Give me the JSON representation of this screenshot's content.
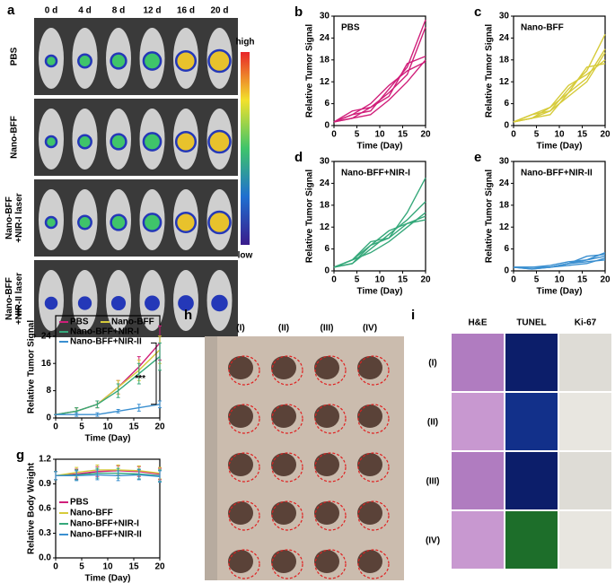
{
  "panel_a": {
    "label": "a",
    "columns": [
      "0 d",
      "4 d",
      "8 d",
      "12 d",
      "16 d",
      "20 d"
    ],
    "rows": [
      [
        "PBS"
      ],
      [
        "Nano-BFF"
      ],
      [
        "Nano-BFF",
        "+NIR-I laser"
      ],
      [
        "Nano-BFF",
        "+NIR-II laser"
      ]
    ],
    "scale_high": "high",
    "scale_low": "low"
  },
  "panel_h": {
    "label": "h",
    "columns": [
      "(I)",
      "(II)",
      "(III)",
      "(IV)"
    ]
  },
  "panel_i": {
    "label": "i",
    "columns": [
      "H&E",
      "TUNEL",
      "Ki-67"
    ],
    "rows": [
      "(I)",
      "(II)",
      "(III)",
      "(IV)"
    ]
  },
  "chart_data": [
    {
      "type": "line",
      "panel": "b",
      "title": "PBS",
      "xlabel": "Time (Day)",
      "ylabel": "Relative Tumor Signal",
      "x": [
        0,
        4,
        8,
        12,
        16,
        20
      ],
      "xlim": [
        0,
        20
      ],
      "xticks": [
        0,
        5,
        10,
        15,
        20
      ],
      "ylim": [
        0,
        30
      ],
      "yticks": [
        0,
        6,
        12,
        18,
        24,
        30
      ],
      "series": [
        {
          "color": "#d01f7a",
          "values": [
            1,
            3,
            4,
            10,
            16,
            29
          ]
        },
        {
          "color": "#d01f7a",
          "values": [
            1,
            2,
            5,
            9,
            14,
            27
          ]
        },
        {
          "color": "#d01f7a",
          "values": [
            1,
            4,
            5,
            8,
            17,
            19
          ]
        },
        {
          "color": "#d01f7a",
          "values": [
            1,
            2,
            3,
            7,
            12,
            18
          ]
        },
        {
          "color": "#d01f7a",
          "values": [
            1,
            3,
            6,
            11,
            15,
            17.5
          ]
        }
      ]
    },
    {
      "type": "line",
      "panel": "c",
      "title": "Nano-BFF",
      "xlabel": "Time (Day)",
      "ylabel": "Relative Tumor Signal",
      "x": [
        0,
        4,
        8,
        12,
        16,
        20
      ],
      "xlim": [
        0,
        20
      ],
      "xticks": [
        0,
        5,
        10,
        15,
        20
      ],
      "ylim": [
        0,
        30
      ],
      "yticks": [
        0,
        6,
        12,
        18,
        24,
        30
      ],
      "series": [
        {
          "color": "#d6cb3a",
          "values": [
            1,
            2,
            4,
            10,
            15,
            25
          ]
        },
        {
          "color": "#d6cb3a",
          "values": [
            1,
            3,
            5,
            9,
            13,
            21
          ]
        },
        {
          "color": "#d6cb3a",
          "values": [
            1,
            2,
            3,
            9,
            16,
            17
          ]
        },
        {
          "color": "#d6cb3a",
          "values": [
            1,
            3,
            4,
            8,
            12,
            20
          ]
        },
        {
          "color": "#d6cb3a",
          "values": [
            1,
            2,
            5,
            11,
            14,
            18
          ]
        }
      ]
    },
    {
      "type": "line",
      "panel": "d",
      "title": "Nano-BFF+NIR-I",
      "xlabel": "Time (Day)",
      "ylabel": "Relative Tumor Signal",
      "x": [
        0,
        4,
        8,
        12,
        16,
        20
      ],
      "xlim": [
        0,
        20
      ],
      "xticks": [
        0,
        5,
        10,
        15,
        20
      ],
      "ylim": [
        0,
        30
      ],
      "yticks": [
        0,
        6,
        12,
        18,
        24,
        30
      ],
      "series": [
        {
          "color": "#35a87a",
          "values": [
            1,
            3,
            7,
            9,
            16,
            25.5
          ]
        },
        {
          "color": "#35a87a",
          "values": [
            1,
            2,
            6,
            10,
            14,
            19
          ]
        },
        {
          "color": "#35a87a",
          "values": [
            1,
            3,
            5,
            8,
            12,
            16
          ]
        },
        {
          "color": "#35a87a",
          "values": [
            1,
            2,
            7,
            11,
            13,
            15
          ]
        },
        {
          "color": "#35a87a",
          "values": [
            1,
            3,
            8,
            9,
            13,
            14
          ]
        }
      ]
    },
    {
      "type": "line",
      "panel": "e",
      "title": "Nano-BFF+NIR-II",
      "xlabel": "Time (Day)",
      "ylabel": "Relative Tumor Signal",
      "x": [
        0,
        4,
        8,
        12,
        16,
        20
      ],
      "xlim": [
        0,
        20
      ],
      "xticks": [
        0,
        5,
        10,
        15,
        20
      ],
      "ylim": [
        0,
        30
      ],
      "yticks": [
        0,
        6,
        12,
        18,
        24,
        30
      ],
      "series": [
        {
          "color": "#3a8fd0",
          "values": [
            1,
            1,
            1,
            2,
            3,
            5
          ]
        },
        {
          "color": "#3a8fd0",
          "values": [
            1,
            0.5,
            1,
            2,
            4,
            4.5
          ]
        },
        {
          "color": "#3a8fd0",
          "values": [
            1,
            1,
            1.5,
            2.5,
            3,
            4
          ]
        },
        {
          "color": "#3a8fd0",
          "values": [
            1,
            0.5,
            1,
            1.5,
            2,
            3.5
          ]
        },
        {
          "color": "#3a8fd0",
          "values": [
            1,
            1,
            1,
            2,
            2.5,
            3
          ]
        }
      ]
    },
    {
      "type": "errorline",
      "panel": "f",
      "xlabel": "Time (Day)",
      "ylabel": "Relative Tumor Signal",
      "annotation": "***",
      "x": [
        0,
        4,
        8,
        12,
        16,
        20
      ],
      "xlim": [
        0,
        20
      ],
      "xticks": [
        0,
        5,
        10,
        15,
        20
      ],
      "ylim": [
        0,
        30
      ],
      "yticks": [
        0,
        8,
        16,
        24
      ],
      "series": [
        {
          "name": "PBS",
          "color": "#d01f7a",
          "values": [
            1,
            2,
            4,
            9,
            15,
            22
          ],
          "errors": [
            0,
            1,
            1,
            2,
            3,
            5
          ]
        },
        {
          "name": "Nano-BFF",
          "color": "#d6cb3a",
          "values": [
            1,
            2,
            4,
            9,
            14,
            20
          ],
          "errors": [
            0,
            1,
            1,
            2,
            3,
            4
          ]
        },
        {
          "name": "Nano-BFF+NIR-I",
          "color": "#35a87a",
          "values": [
            1,
            2,
            4,
            8,
            13,
            18
          ],
          "errors": [
            0,
            1,
            1,
            2,
            3,
            4
          ]
        },
        {
          "name": "Nano-BFF+NIR-II",
          "color": "#3a8fd0",
          "values": [
            1,
            1,
            1,
            2,
            3,
            4
          ],
          "errors": [
            0,
            0.5,
            0.5,
            0.5,
            1,
            1
          ]
        }
      ]
    },
    {
      "type": "errorline",
      "panel": "g",
      "xlabel": "Time (Day)",
      "ylabel": "Relative Body Weight",
      "x": [
        0,
        4,
        8,
        12,
        16,
        20
      ],
      "xlim": [
        0,
        20
      ],
      "xticks": [
        0,
        5,
        10,
        15,
        20
      ],
      "ylim": [
        0,
        1.2
      ],
      "yticks": [
        {
          "value": 0,
          "label": "0.0"
        },
        {
          "value": 0.3,
          "label": "0.3"
        },
        {
          "value": 0.6,
          "label": "0.6"
        },
        {
          "value": 0.9,
          "label": "0.9"
        },
        {
          "value": 1.2,
          "label": "1.2"
        }
      ],
      "series": [
        {
          "name": "PBS",
          "color": "#d01f7a",
          "values": [
            1,
            1.02,
            1.05,
            1.06,
            1.05,
            1.02
          ],
          "errors": [
            0.05,
            0.06,
            0.06,
            0.06,
            0.06,
            0.07
          ]
        },
        {
          "name": "Nano-BFF",
          "color": "#d6cb3a",
          "values": [
            1,
            1.04,
            1.07,
            1.07,
            1.06,
            1.03
          ],
          "errors": [
            0.05,
            0.06,
            0.06,
            0.06,
            0.06,
            0.07
          ]
        },
        {
          "name": "Nano-BFF+NIR-I",
          "color": "#35a87a",
          "values": [
            1,
            1.01,
            1.03,
            1.03,
            1.02,
            1.0
          ],
          "errors": [
            0.05,
            0.06,
            0.06,
            0.06,
            0.06,
            0.07
          ]
        },
        {
          "name": "Nano-BFF+NIR-II",
          "color": "#3a8fd0",
          "values": [
            1,
            1.0,
            1.01,
            1.0,
            1.01,
            0.99
          ],
          "errors": [
            0.05,
            0.06,
            0.06,
            0.06,
            0.06,
            0.07
          ]
        }
      ]
    }
  ]
}
